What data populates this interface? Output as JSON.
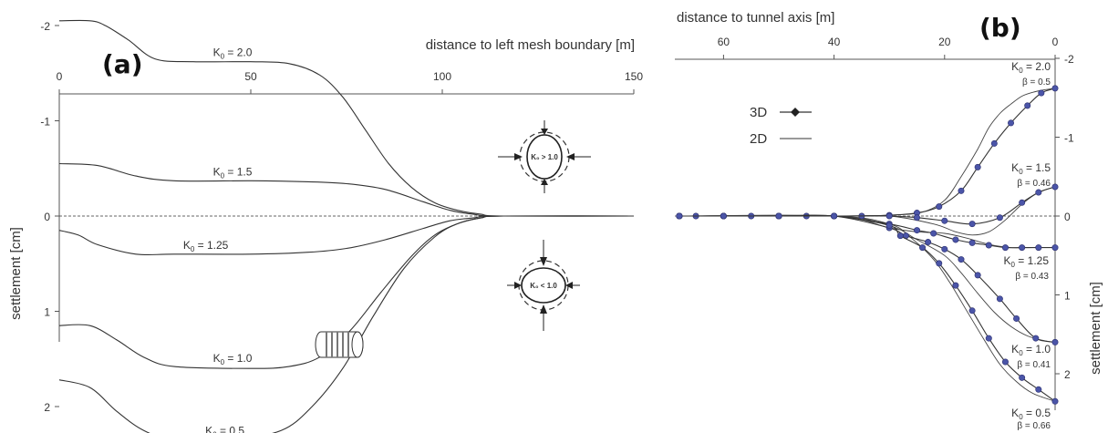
{
  "chart_data": [
    {
      "panel": "(a)",
      "type": "line",
      "xlabel": "distance to left mesh boundary [m]",
      "ylabel": "settlement [cm]",
      "xlim": [
        0,
        150
      ],
      "ylim": [
        -2.3,
        2.6
      ],
      "x_ticks": [
        0,
        50,
        100,
        150
      ],
      "y_ticks": [
        -2,
        -1,
        0,
        1,
        2
      ],
      "y_tick_labels": [
        "-2",
        "-1",
        "0",
        "1",
        "2"
      ],
      "reference_line": 0,
      "series": [
        {
          "name": "K₀ = 2.0",
          "x": [
            0,
            8,
            12,
            18,
            25,
            35,
            50,
            60,
            68,
            74,
            80,
            86,
            92,
            98,
            104,
            110,
            116,
            150
          ],
          "y": [
            -2.05,
            -2.05,
            -2.0,
            -1.85,
            -1.65,
            -1.62,
            -1.62,
            -1.6,
            -1.48,
            -1.25,
            -0.9,
            -0.55,
            -0.3,
            -0.14,
            -0.06,
            -0.02,
            0,
            0
          ]
        },
        {
          "name": "K₀ = 1.5",
          "x": [
            0,
            10,
            20,
            30,
            50,
            65,
            75,
            85,
            95,
            102,
            108,
            115,
            150
          ],
          "y": [
            -0.55,
            -0.53,
            -0.42,
            -0.37,
            -0.37,
            -0.36,
            -0.34,
            -0.28,
            -0.15,
            -0.06,
            -0.02,
            0,
            0
          ]
        },
        {
          "name": "K₀ = 1.25",
          "x": [
            0,
            5,
            10,
            20,
            30,
            50,
            65,
            75,
            85,
            95,
            102,
            108,
            115,
            150
          ],
          "y": [
            0.15,
            0.2,
            0.3,
            0.4,
            0.4,
            0.4,
            0.38,
            0.34,
            0.25,
            0.13,
            0.05,
            0.02,
            0,
            0
          ]
        },
        {
          "name": "K₀ = 1.0",
          "x": [
            0,
            8,
            15,
            22,
            30,
            50,
            60,
            68,
            76,
            84,
            92,
            98,
            104,
            110,
            116,
            150
          ],
          "y": [
            1.15,
            1.15,
            1.3,
            1.48,
            1.58,
            1.6,
            1.58,
            1.48,
            1.2,
            0.8,
            0.42,
            0.2,
            0.08,
            0.02,
            0,
            0
          ]
        },
        {
          "name": "K₀ = 0.5",
          "x": [
            0,
            8,
            15,
            22,
            30,
            45,
            58,
            66,
            74,
            82,
            90,
            98,
            104,
            110,
            116,
            150
          ],
          "y": [
            1.72,
            1.8,
            2.05,
            2.25,
            2.35,
            2.35,
            2.25,
            2.0,
            1.6,
            1.05,
            0.55,
            0.22,
            0.08,
            0.02,
            0,
            0
          ]
        }
      ],
      "annotations": [
        "K₀ > 1.0",
        "K₀ < 1.0"
      ]
    },
    {
      "panel": "(b)",
      "type": "line",
      "xlabel": "distance to tunnel axis [m]",
      "ylabel": "settlement [cm]",
      "xlim": [
        65,
        0
      ],
      "ylim": [
        -2.1,
        2.5
      ],
      "x_ticks": [
        60,
        40,
        20,
        0
      ],
      "y_ticks": [
        -2,
        -1,
        0,
        1,
        2
      ],
      "y_tick_labels": [
        "-2",
        "-1",
        "0",
        "1",
        "2"
      ],
      "legend": [
        "3D",
        "2D"
      ],
      "reference_line": 0,
      "series_3d": [
        {
          "name": "K₀ = 2.0",
          "beta": "β = 0.5",
          "x": [
            68,
            65,
            60,
            55,
            50,
            45,
            40,
            35,
            30,
            25,
            21,
            17,
            14,
            11,
            8,
            5,
            2.5,
            0
          ],
          "y": [
            0,
            0,
            0,
            0,
            0,
            0,
            0,
            0,
            -0.01,
            -0.04,
            -0.12,
            -0.32,
            -0.62,
            -0.92,
            -1.18,
            -1.4,
            -1.56,
            -1.62
          ]
        },
        {
          "name": "K₀ = 1.5",
          "beta": "β = 0.46",
          "x": [
            68,
            60,
            50,
            40,
            30,
            25,
            20,
            15,
            10,
            6,
            3,
            0
          ],
          "y": [
            0,
            0,
            0,
            0,
            0,
            0.02,
            0.06,
            0.1,
            0.02,
            -0.17,
            -0.3,
            -0.37
          ]
        },
        {
          "name": "K₀ = 1.25",
          "beta": "β = 0.43",
          "x": [
            68,
            60,
            50,
            40,
            30,
            25,
            22,
            18,
            15,
            12,
            9,
            6,
            3,
            0
          ],
          "y": [
            0,
            0,
            0,
            0,
            0.1,
            0.18,
            0.22,
            0.3,
            0.34,
            0.37,
            0.4,
            0.4,
            0.4,
            0.4
          ]
        },
        {
          "name": "K₀ = 1.0",
          "beta": "β = 0.41",
          "x": [
            68,
            60,
            50,
            40,
            30,
            27,
            23,
            20,
            17,
            14,
            10,
            7,
            3.5,
            0
          ],
          "y": [
            0,
            0,
            0,
            0,
            0.15,
            0.25,
            0.33,
            0.42,
            0.55,
            0.75,
            1.05,
            1.3,
            1.55,
            1.6
          ]
        },
        {
          "name": "K₀ = 0.5",
          "beta": "β = 0.66",
          "x": [
            68,
            60,
            50,
            40,
            30,
            28,
            24,
            21,
            18,
            15,
            12,
            9,
            6,
            3,
            0
          ],
          "y": [
            0,
            0,
            0,
            0,
            0.12,
            0.25,
            0.4,
            0.6,
            0.88,
            1.2,
            1.55,
            1.85,
            2.05,
            2.2,
            2.35
          ]
        }
      ],
      "series_2d": [
        {
          "name": "K₀ = 2.0",
          "x": [
            68,
            40,
            30,
            24,
            20,
            17,
            14,
            12,
            10,
            8,
            6,
            4,
            2,
            0
          ],
          "y": [
            0,
            0,
            -0.01,
            -0.05,
            -0.2,
            -0.5,
            -0.85,
            -1.12,
            -1.3,
            -1.42,
            -1.52,
            -1.57,
            -1.6,
            -1.62
          ]
        },
        {
          "name": "K₀ = 1.5",
          "x": [
            68,
            40,
            30,
            22,
            18,
            15,
            12,
            9,
            6,
            3,
            0
          ],
          "y": [
            0,
            0,
            0,
            0.1,
            0.2,
            0.24,
            0.2,
            0.05,
            -0.15,
            -0.3,
            -0.37
          ]
        },
        {
          "name": "K₀ = 1.25",
          "x": [
            68,
            40,
            30,
            25,
            20,
            16,
            12,
            8,
            4,
            0
          ],
          "y": [
            0,
            0,
            0.15,
            0.2,
            0.22,
            0.28,
            0.36,
            0.4,
            0.4,
            0.4
          ]
        },
        {
          "name": "K₀ = 1.0",
          "x": [
            68,
            40,
            30,
            25,
            20,
            17,
            14,
            11,
            8,
            5,
            2,
            0
          ],
          "y": [
            0,
            0,
            0.12,
            0.3,
            0.5,
            0.72,
            0.98,
            1.22,
            1.4,
            1.52,
            1.58,
            1.6
          ]
        },
        {
          "name": "K₀ = 0.5",
          "x": [
            68,
            40,
            30,
            26,
            22,
            19,
            16,
            13,
            10,
            7,
            4,
            0
          ],
          "y": [
            0,
            0,
            0.1,
            0.28,
            0.55,
            0.85,
            1.2,
            1.55,
            1.88,
            2.1,
            2.25,
            2.35
          ]
        }
      ]
    }
  ]
}
